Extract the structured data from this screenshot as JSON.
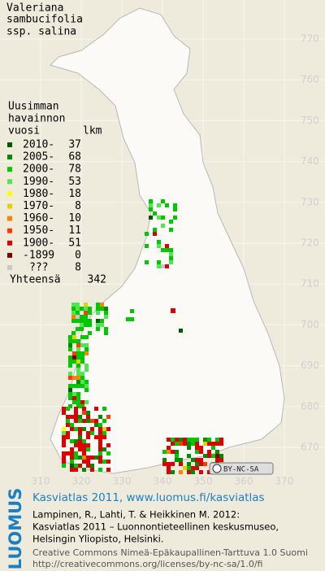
{
  "title": [
    "Valeriana",
    "sambucifolia",
    "ssp. salina"
  ],
  "legend": {
    "header": [
      "Uusimman",
      "havainnon"
    ],
    "year_heading": "vuosi",
    "count_heading": "lkm",
    "rows": [
      {
        "label": "2010-",
        "count": 37,
        "color": "#005a00"
      },
      {
        "label": "2005-",
        "count": 68,
        "color": "#008c00"
      },
      {
        "label": "2000-",
        "count": 78,
        "color": "#00c800"
      },
      {
        "label": "1990-",
        "count": 53,
        "color": "#50e650"
      },
      {
        "label": "1980-",
        "count": 18,
        "color": "#ffff00"
      },
      {
        "label": "1970-",
        "count": 8,
        "color": "#e6d200"
      },
      {
        "label": "1960-",
        "count": 10,
        "color": "#ff8200"
      },
      {
        "label": "1950-",
        "count": 11,
        "color": "#ff3c00"
      },
      {
        "label": "1900-",
        "count": 51,
        "color": "#dc0000"
      },
      {
        "label": "-1899",
        "count": 0,
        "color": "#820000"
      },
      {
        "label": "???",
        "count": 8,
        "color": "#c8c8c8"
      }
    ],
    "total_label": "Yhteensä",
    "total": 342
  },
  "grid": {
    "north": [
      770,
      760,
      750,
      740,
      730,
      720,
      710,
      700,
      690,
      680,
      670
    ],
    "east": [
      310,
      320,
      330,
      340,
      350,
      360,
      370
    ]
  },
  "license_badge": "BY-NC-SA",
  "footer": {
    "brand": "LUOMUS",
    "link": "Kasviatlas 2011, www.luomus.fi/kasviatlas",
    "citation": [
      "Lampinen, R., Lahti, T. & Heikkinen M. 2012:",
      "Kasviatlas 2011 – Luonnontieteellinen keskusmuseo,",
      "Helsingin Yliopisto, Helsinki."
    ],
    "license": [
      "Creative Commons Nimeä-Epäkaupallinen-Tarttuva 1.0 Suomi",
      "http://creativecommons.org/licenses/by-nc-sa/1.0/fi"
    ]
  }
}
